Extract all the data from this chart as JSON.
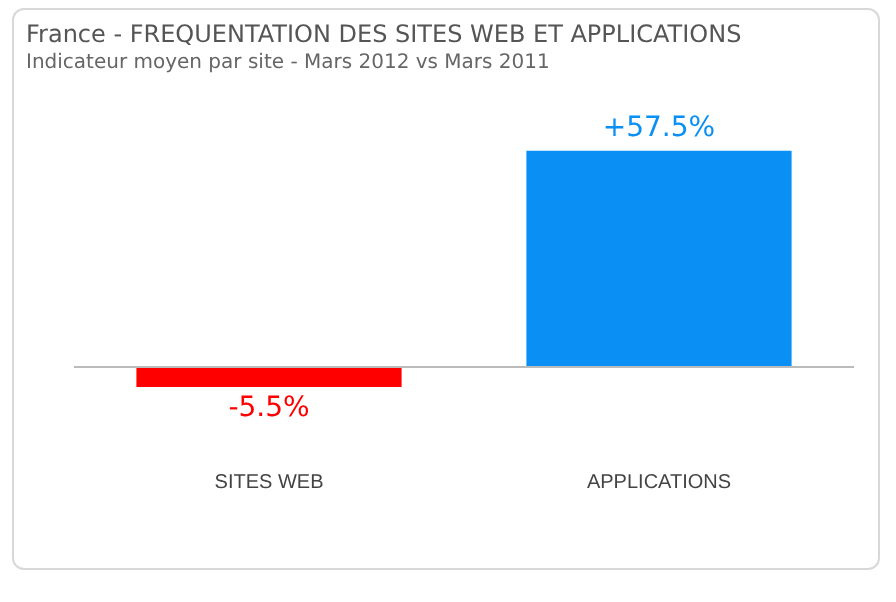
{
  "chart_data": {
    "type": "bar",
    "title": "France - FREQUENTATION DES SITES WEB ET APPLICATIONS",
    "subtitle": "Indicateur moyen par site - Mars 2012 vs Mars 2011",
    "categories": [
      "SITES WEB",
      "APPLICATIONS"
    ],
    "values": [
      -5.5,
      57.5
    ],
    "colors": [
      "#ff0000",
      "#0a8ff5"
    ],
    "value_labels": [
      "-5.5%",
      "+57.5%"
    ],
    "grid": false,
    "legend": false
  }
}
